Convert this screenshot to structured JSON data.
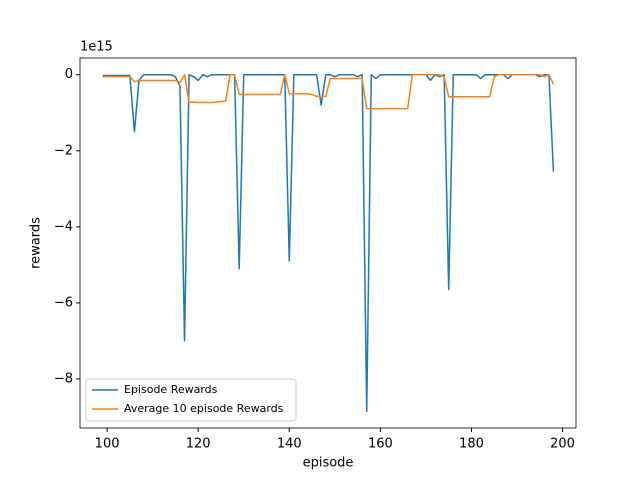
{
  "chart_data": {
    "type": "line",
    "x_label": "episode",
    "y_label": "rewards",
    "y_offset_label": "1e15",
    "x": [
      99,
      100,
      101,
      102,
      103,
      104,
      105,
      106,
      107,
      108,
      109,
      110,
      111,
      112,
      113,
      114,
      115,
      116,
      117,
      118,
      119,
      120,
      121,
      122,
      123,
      124,
      125,
      126,
      127,
      128,
      129,
      130,
      131,
      132,
      133,
      134,
      135,
      136,
      137,
      138,
      139,
      140,
      141,
      142,
      143,
      144,
      145,
      146,
      147,
      148,
      149,
      150,
      151,
      152,
      153,
      154,
      155,
      156,
      157,
      158,
      159,
      160,
      161,
      162,
      163,
      164,
      165,
      166,
      167,
      168,
      169,
      170,
      171,
      172,
      173,
      174,
      175,
      176,
      177,
      178,
      179,
      180,
      181,
      182,
      183,
      184,
      185,
      186,
      187,
      188,
      189,
      190,
      191,
      192,
      193,
      194,
      195,
      196,
      197,
      198
    ],
    "series": [
      {
        "name": "Episode Rewards",
        "color": "#1f77b4",
        "values": [
          -0.02,
          -0.02,
          -0.02,
          -0.02,
          -0.02,
          -0.02,
          -0.02,
          -1.5,
          -0.15,
          0,
          0,
          0,
          0,
          0,
          0,
          0,
          -0.05,
          -0.3,
          -7.0,
          0,
          -0.05,
          -0.15,
          0,
          -0.05,
          0,
          0,
          0,
          0,
          0,
          0,
          -5.1,
          0,
          0,
          0,
          0,
          0,
          0,
          0,
          0,
          0,
          0,
          -4.9,
          0,
          0,
          0,
          0,
          0,
          0,
          -0.8,
          0,
          0,
          -0.05,
          0,
          0,
          0,
          0,
          -0.05,
          0,
          -8.85,
          0,
          -0.1,
          0,
          0,
          0,
          0,
          0,
          0,
          0,
          0,
          0,
          0,
          0,
          -0.15,
          0,
          -0.05,
          0,
          -5.65,
          0,
          0,
          0,
          0,
          0,
          0,
          -0.1,
          0,
          0,
          0,
          0,
          0,
          -0.1,
          0,
          0,
          0,
          0,
          0,
          0,
          -0.05,
          0,
          0,
          -2.55
        ]
      },
      {
        "name": "Average 10 episode Rewards",
        "color": "#ff7f0e",
        "values": [
          -0.05,
          -0.05,
          -0.05,
          -0.05,
          -0.05,
          -0.05,
          -0.05,
          -0.18,
          -0.15,
          -0.15,
          -0.15,
          -0.15,
          -0.15,
          -0.15,
          -0.15,
          -0.15,
          -0.15,
          -0.2,
          0,
          -0.72,
          -0.72,
          -0.73,
          -0.73,
          -0.73,
          -0.73,
          -0.72,
          -0.7,
          -0.7,
          0,
          0,
          -0.52,
          -0.52,
          -0.52,
          -0.52,
          -0.52,
          -0.52,
          -0.52,
          -0.52,
          -0.52,
          -0.52,
          0,
          -0.5,
          -0.5,
          -0.5,
          -0.5,
          -0.5,
          -0.52,
          -0.57,
          -0.57,
          -0.57,
          -0.1,
          -0.1,
          -0.1,
          -0.1,
          -0.1,
          -0.1,
          -0.1,
          -0.1,
          -0.89,
          -0.89,
          -0.89,
          -0.89,
          -0.89,
          -0.89,
          -0.89,
          -0.89,
          -0.89,
          -0.89,
          0,
          0,
          0,
          0,
          0,
          0,
          0,
          -0.05,
          -0.58,
          -0.58,
          -0.58,
          -0.58,
          -0.58,
          -0.58,
          -0.58,
          -0.58,
          -0.58,
          -0.58,
          -0.05,
          0,
          0,
          0,
          0,
          0,
          0,
          0,
          0,
          0,
          0,
          -0.05,
          0,
          -0.25
        ]
      }
    ],
    "xlim": [
      94.05,
      202.95
    ],
    "ylim": [
      -9.29,
      0.44
    ],
    "xticks": [
      100,
      120,
      140,
      160,
      180,
      200
    ],
    "yticks": [
      0,
      {
        "value": -2,
        "label": "−2"
      },
      {
        "value": -4,
        "label": "−4"
      },
      {
        "value": -6,
        "label": "−6"
      },
      {
        "value": -8,
        "label": "−8"
      }
    ],
    "legend_position": "lower left",
    "grid": false
  }
}
